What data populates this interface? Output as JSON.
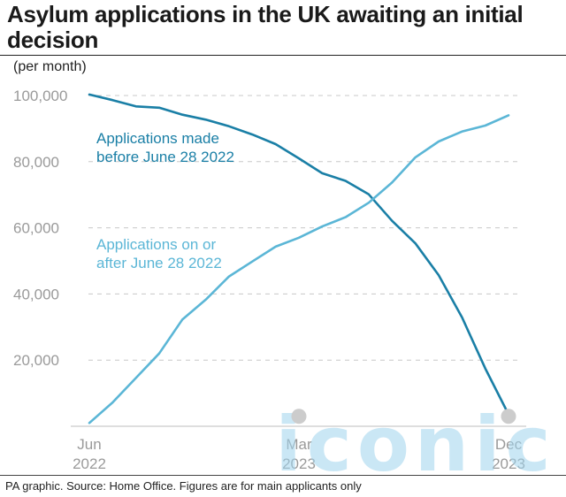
{
  "title": "Asylum applications in the UK awaiting an initial decision",
  "units_label": "(per month)",
  "source": "PA graphic. Source: Home Office. Figures are for main applicants only",
  "watermark": "iconic",
  "chart_data": {
    "type": "line",
    "title": "Asylum applications in the UK awaiting an initial decision",
    "ylabel": "(per month)",
    "xlabel": "",
    "ylim": [
      0,
      100000
    ],
    "yticks": [
      {
        "value": 100000,
        "label": "100,000"
      },
      {
        "value": 80000,
        "label": "80,000"
      },
      {
        "value": 60000,
        "label": "60,000"
      },
      {
        "value": 40000,
        "label": "40,000"
      },
      {
        "value": 20000,
        "label": "20,000"
      }
    ],
    "grid": true,
    "x": [
      "2022-06",
      "2022-07",
      "2022-08",
      "2022-09",
      "2022-10",
      "2022-11",
      "2022-12",
      "2023-01",
      "2023-02",
      "2023-03",
      "2023-04",
      "2023-05",
      "2023-06",
      "2023-07",
      "2023-08",
      "2023-09",
      "2023-10",
      "2023-11",
      "2023-12"
    ],
    "xticks": [
      {
        "index": 0,
        "lines": [
          "Jun",
          "2022"
        ]
      },
      {
        "index": 9,
        "lines": [
          "Mar",
          "2023"
        ]
      },
      {
        "index": 18,
        "lines": [
          "Dec",
          "2023"
        ]
      }
    ],
    "series": [
      {
        "name": "Applications made before June 28 2022",
        "label_lines": [
          "Applications made",
          "before June 28 2022"
        ],
        "color": "#1a7fa6",
        "values": [
          100300,
          98600,
          96700,
          96300,
          94200,
          92700,
          90700,
          88200,
          85300,
          81000,
          76500,
          74200,
          70100,
          62100,
          55300,
          45700,
          33000,
          17500,
          3600
        ]
      },
      {
        "name": "Applications on or after June 28 2022",
        "label_lines": [
          "Applications on or",
          "after June 28 2022"
        ],
        "color": "#5bb6d6",
        "values": [
          1000,
          7200,
          14600,
          22000,
          32300,
          38300,
          45300,
          49800,
          54300,
          57000,
          60400,
          63200,
          67600,
          73700,
          81300,
          86100,
          89100,
          90900,
          94000
        ]
      }
    ],
    "markers": [
      {
        "index": 9,
        "value": 2200,
        "color": "#cccccc"
      },
      {
        "index": 18,
        "value": 2200,
        "color": "#cccccc"
      }
    ]
  }
}
